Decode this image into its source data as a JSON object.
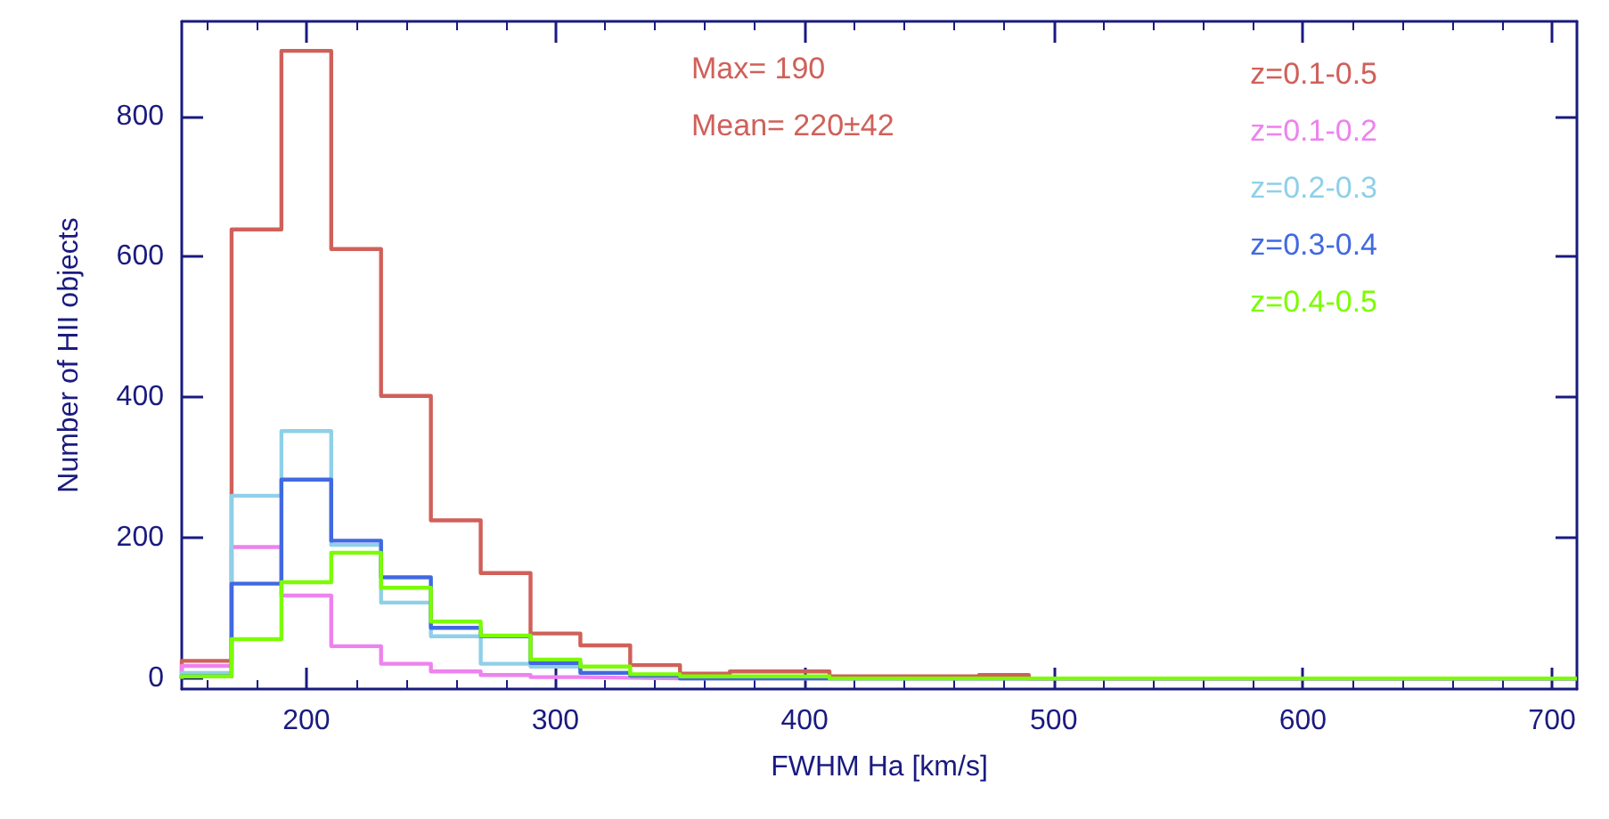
{
  "chart_data": {
    "type": "histogram",
    "xlabel": "FWHM Ha [km/s]",
    "ylabel": "Number of HII objects",
    "annotations": [
      "Max= 190",
      "Mean= 220±42"
    ],
    "bins": [
      150,
      170,
      190,
      210,
      230,
      250,
      270,
      290,
      310,
      330,
      350,
      370,
      390,
      410,
      430,
      450,
      470,
      490,
      510,
      530,
      550,
      570,
      590,
      610,
      630,
      650,
      670,
      690,
      710
    ],
    "series": [
      {
        "name": "z=0.1-0.5",
        "color": "#d0605a",
        "values": [
          25,
          639,
          893,
          611,
          402,
          225,
          150,
          64,
          47,
          19,
          7,
          10,
          10,
          3,
          3,
          3,
          5,
          0,
          0,
          0,
          0,
          0,
          0,
          0,
          0,
          0,
          0,
          0
        ]
      },
      {
        "name": "z=0.1-0.2",
        "color": "#ee82ee",
        "values": [
          18,
          187,
          118,
          46,
          21,
          10,
          5,
          2,
          1,
          0,
          0,
          0,
          0,
          0,
          0,
          0,
          0,
          0,
          0,
          0,
          0,
          0,
          0,
          0,
          0,
          0,
          0,
          0
        ]
      },
      {
        "name": "z=0.2-0.3",
        "color": "#8fd0e8",
        "values": [
          8,
          260,
          352,
          190,
          108,
          60,
          21,
          17,
          8,
          3,
          0,
          0,
          0,
          0,
          0,
          0,
          0,
          0,
          0,
          0,
          0,
          0,
          0,
          0,
          0,
          0,
          0,
          0
        ]
      },
      {
        "name": "z=0.3-0.4",
        "color": "#4169e1",
        "values": [
          3,
          135,
          283,
          196,
          144,
          72,
          60,
          22,
          8,
          4,
          0,
          0,
          0,
          0,
          0,
          0,
          0,
          0,
          0,
          0,
          0,
          0,
          0,
          0,
          0,
          0,
          0,
          0
        ]
      },
      {
        "name": "z=0.4-0.5",
        "color": "#7cfc00",
        "values": [
          3,
          56,
          137,
          179,
          129,
          81,
          61,
          27,
          17,
          6,
          3,
          3,
          3,
          0,
          0,
          0,
          0,
          0,
          0,
          0,
          0,
          0,
          0,
          0,
          0,
          0,
          0,
          0
        ]
      }
    ],
    "xlim": [
      150,
      710
    ],
    "xticks": [
      200,
      300,
      400,
      500,
      600,
      700
    ],
    "ylim": [
      -15,
      935
    ],
    "yticks": [
      0,
      200,
      400,
      600,
      800
    ],
    "legend": "top right",
    "grid": false
  }
}
